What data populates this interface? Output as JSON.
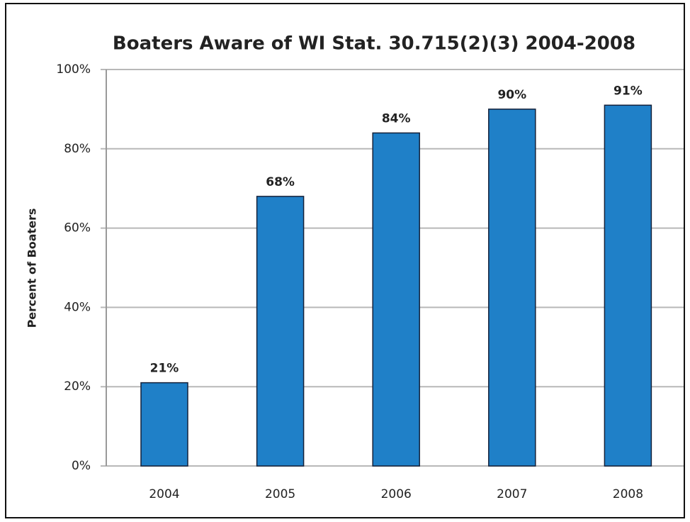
{
  "chart_data": {
    "type": "bar",
    "title": "Boaters Aware of WI Stat. 30.715(2)(3)  2004-2008",
    "y_label": "Percent of Boaters",
    "categories": [
      "2004",
      "2005",
      "2006",
      "2007",
      "2008"
    ],
    "values": [
      21,
      68,
      84,
      90,
      91
    ],
    "value_labels": [
      "21%",
      "68%",
      "84%",
      "90%",
      "91%"
    ],
    "color": "#1f80c8",
    "ylim": [
      0,
      100
    ],
    "yticks": [
      {
        "value": 0,
        "label": "0%"
      },
      {
        "value": 20,
        "label": "20%"
      },
      {
        "value": 40,
        "label": "40%"
      },
      {
        "value": 60,
        "label": "60%"
      },
      {
        "value": 80,
        "label": "80%"
      },
      {
        "value": 100,
        "label": "100%"
      }
    ],
    "grid": true
  }
}
